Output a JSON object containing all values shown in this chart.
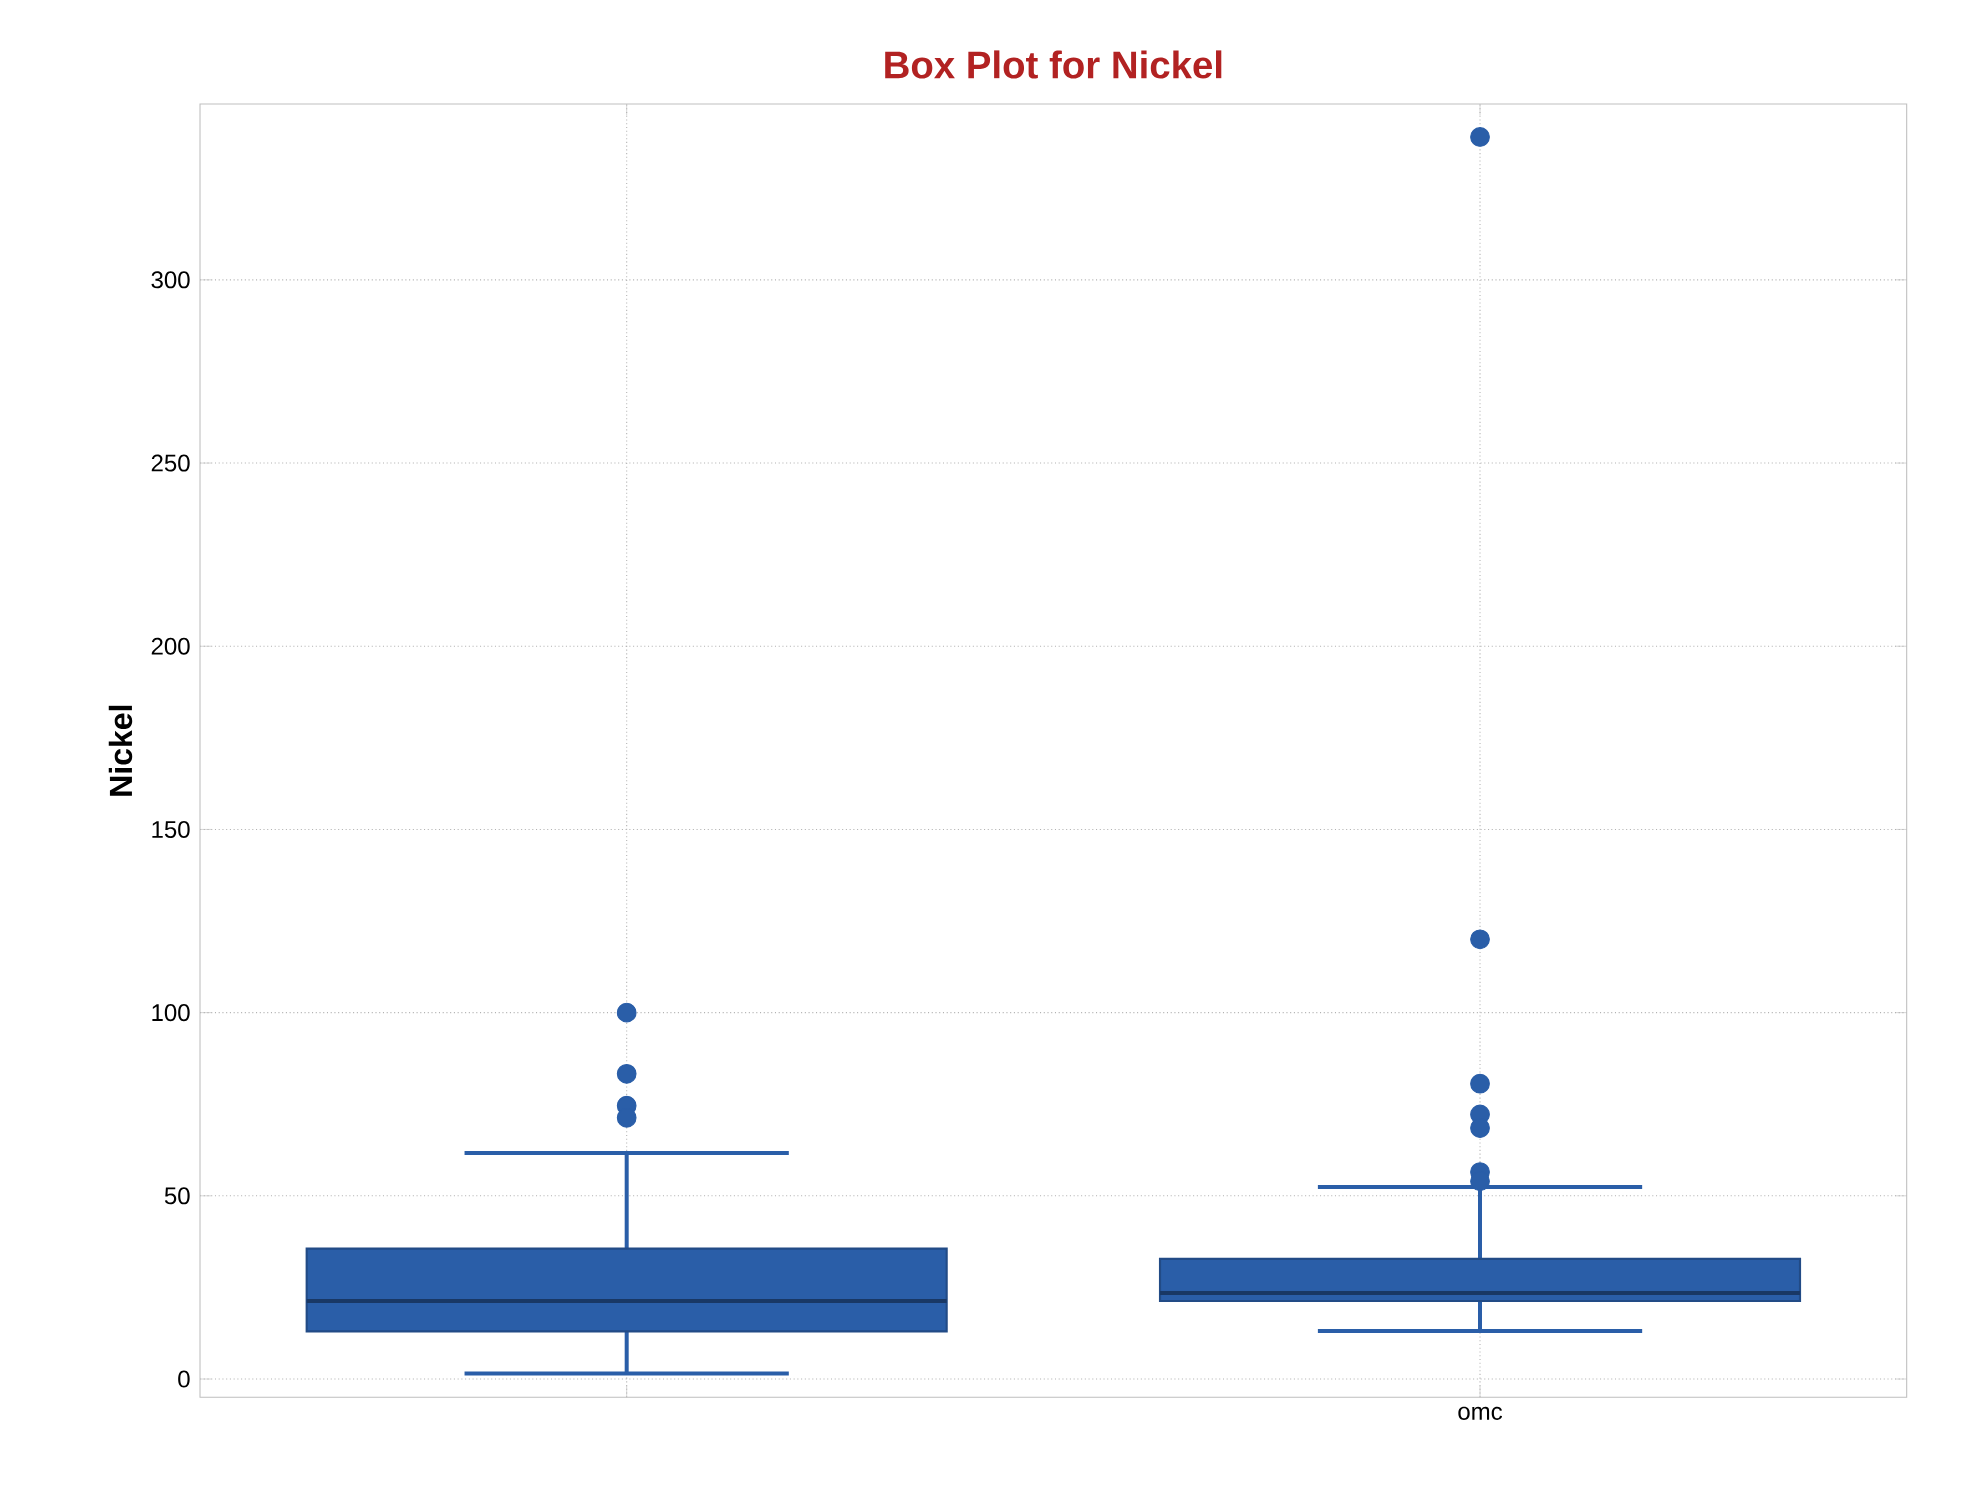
{
  "chart_data": {
    "type": "box",
    "title": "Box Plot for Nickel",
    "ylabel": "Nickel",
    "categories": [
      null,
      "omc"
    ],
    "color": "#2a5ea8",
    "boxes": [
      {
        "low": 1.5,
        "q1": 13,
        "median": 21.3,
        "q3": 35.6,
        "high": 61.7,
        "outliers": [
          100,
          83.3,
          74.6,
          71.3
        ]
      },
      {
        "low": 13.1,
        "q1": 21.3,
        "median": 23.5,
        "q3": 32.8,
        "high": 52.4,
        "outliers": [
          339,
          120,
          80.6,
          72.2,
          68.5,
          56.5,
          54
        ]
      }
    ],
    "ylim": [
      -5,
      348
    ],
    "yticks": [
      0,
      50,
      100,
      150,
      200,
      250,
      300
    ],
    "grid": true,
    "marker": "circle"
  }
}
